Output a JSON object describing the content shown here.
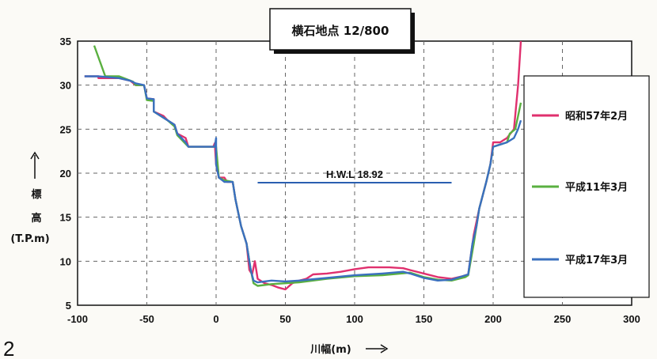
{
  "page_number": "2",
  "chart_data": {
    "type": "line",
    "title": "横石地点 12/800",
    "xlabel": "川幅(m)",
    "ylabel_lines": [
      "標",
      "高",
      "(T.P.m)"
    ],
    "xlim": [
      -100,
      300
    ],
    "ylim": [
      5,
      35
    ],
    "xticks": [
      -100,
      -50,
      0,
      50,
      100,
      150,
      200,
      250,
      300
    ],
    "yticks": [
      5,
      10,
      15,
      20,
      25,
      30,
      35
    ],
    "grid": true,
    "legend_position": "right",
    "annotation": {
      "text": "H.W.L 18.92",
      "y": 18.92,
      "x_range": [
        30,
        170
      ],
      "color": "#2a5fb0"
    },
    "series": [
      {
        "name": "昭和57年2月",
        "color": "#e0306e",
        "points": [
          [
            -95,
            31
          ],
          [
            -85,
            31
          ],
          [
            -85,
            30.8
          ],
          [
            -70,
            30.8
          ],
          [
            -62,
            30.5
          ],
          [
            -58,
            30
          ],
          [
            -52,
            30
          ],
          [
            -50,
            28.5
          ],
          [
            -45,
            28.4
          ],
          [
            -45,
            27
          ],
          [
            -38,
            26.5
          ],
          [
            -35,
            26
          ],
          [
            -30,
            25.5
          ],
          [
            -28,
            24.5
          ],
          [
            -22,
            24
          ],
          [
            -20,
            23
          ],
          [
            -10,
            23
          ],
          [
            -2,
            23
          ],
          [
            -1,
            23.4
          ],
          [
            0,
            21
          ],
          [
            2,
            19.5
          ],
          [
            6,
            19.5
          ],
          [
            8,
            19
          ],
          [
            12,
            19
          ],
          [
            14,
            17
          ],
          [
            16,
            15.5
          ],
          [
            18,
            14
          ],
          [
            20,
            13
          ],
          [
            22,
            12
          ],
          [
            24,
            9
          ],
          [
            26,
            8.5
          ],
          [
            28,
            10
          ],
          [
            30,
            8
          ],
          [
            35,
            7.5
          ],
          [
            40,
            7.3
          ],
          [
            45,
            7
          ],
          [
            50,
            6.8
          ],
          [
            55,
            7.5
          ],
          [
            60,
            7.8
          ],
          [
            65,
            8
          ],
          [
            70,
            8.5
          ],
          [
            80,
            8.6
          ],
          [
            90,
            8.8
          ],
          [
            100,
            9.1
          ],
          [
            110,
            9.3
          ],
          [
            125,
            9.3
          ],
          [
            135,
            9.2
          ],
          [
            140,
            9
          ],
          [
            150,
            8.6
          ],
          [
            160,
            8.2
          ],
          [
            170,
            8
          ],
          [
            178,
            8.3
          ],
          [
            182,
            8.5
          ],
          [
            186,
            13
          ],
          [
            190,
            16
          ],
          [
            195,
            19
          ],
          [
            198,
            21
          ],
          [
            200,
            23.5
          ],
          [
            205,
            23.5
          ],
          [
            210,
            24
          ],
          [
            215,
            25
          ],
          [
            218,
            30
          ],
          [
            220,
            35
          ]
        ]
      },
      {
        "name": "平成11年3月",
        "color": "#5ab040",
        "points": [
          [
            -88,
            34.5
          ],
          [
            -80,
            31
          ],
          [
            -70,
            31
          ],
          [
            -60,
            30.4
          ],
          [
            -58,
            30
          ],
          [
            -52,
            30
          ],
          [
            -50,
            28.3
          ],
          [
            -45,
            28.2
          ],
          [
            -45,
            27
          ],
          [
            -35,
            26
          ],
          [
            -30,
            25.3
          ],
          [
            -28,
            24.3
          ],
          [
            -20,
            23
          ],
          [
            0,
            23
          ],
          [
            2,
            19.5
          ],
          [
            6,
            19.2
          ],
          [
            12,
            19
          ],
          [
            14,
            17
          ],
          [
            18,
            14
          ],
          [
            22,
            12
          ],
          [
            25,
            9
          ],
          [
            27,
            7.5
          ],
          [
            30,
            7.2
          ],
          [
            40,
            7.4
          ],
          [
            50,
            7.5
          ],
          [
            60,
            7.6
          ],
          [
            80,
            8
          ],
          [
            100,
            8.3
          ],
          [
            120,
            8.4
          ],
          [
            140,
            8.7
          ],
          [
            150,
            8.2
          ],
          [
            160,
            7.9
          ],
          [
            170,
            7.8
          ],
          [
            180,
            8.2
          ],
          [
            182,
            8.4
          ],
          [
            186,
            12
          ],
          [
            190,
            16
          ],
          [
            195,
            19
          ],
          [
            198,
            21
          ],
          [
            200,
            23
          ],
          [
            210,
            23.5
          ],
          [
            212,
            24.5
          ],
          [
            216,
            25
          ],
          [
            218,
            26.5
          ],
          [
            220,
            28
          ]
        ]
      },
      {
        "name": "平成17年3月",
        "color": "#3a70bf",
        "points": [
          [
            -95,
            31
          ],
          [
            -85,
            31
          ],
          [
            -70,
            30.8
          ],
          [
            -62,
            30.5
          ],
          [
            -58,
            30.2
          ],
          [
            -52,
            30
          ],
          [
            -50,
            28.5
          ],
          [
            -45,
            28.4
          ],
          [
            -45,
            27
          ],
          [
            -35,
            26
          ],
          [
            -30,
            25.5
          ],
          [
            -28,
            24.5
          ],
          [
            -22,
            23.5
          ],
          [
            -20,
            23
          ],
          [
            -1,
            23
          ],
          [
            0,
            24
          ],
          [
            0,
            21
          ],
          [
            2,
            19.5
          ],
          [
            6,
            19
          ],
          [
            12,
            19
          ],
          [
            14,
            17
          ],
          [
            18,
            14
          ],
          [
            22,
            12
          ],
          [
            25,
            9
          ],
          [
            27,
            7.8
          ],
          [
            30,
            7.6
          ],
          [
            40,
            7.8
          ],
          [
            50,
            7.7
          ],
          [
            60,
            7.8
          ],
          [
            80,
            8.1
          ],
          [
            100,
            8.4
          ],
          [
            120,
            8.6
          ],
          [
            135,
            8.8
          ],
          [
            140,
            8.6
          ],
          [
            150,
            8.1
          ],
          [
            160,
            7.8
          ],
          [
            170,
            7.9
          ],
          [
            180,
            8.4
          ],
          [
            182,
            8.5
          ],
          [
            185,
            12
          ],
          [
            188,
            14
          ],
          [
            190,
            16
          ],
          [
            195,
            19
          ],
          [
            198,
            21
          ],
          [
            200,
            23
          ],
          [
            210,
            23.5
          ],
          [
            215,
            24
          ],
          [
            218,
            25
          ],
          [
            220,
            26
          ]
        ]
      }
    ]
  }
}
